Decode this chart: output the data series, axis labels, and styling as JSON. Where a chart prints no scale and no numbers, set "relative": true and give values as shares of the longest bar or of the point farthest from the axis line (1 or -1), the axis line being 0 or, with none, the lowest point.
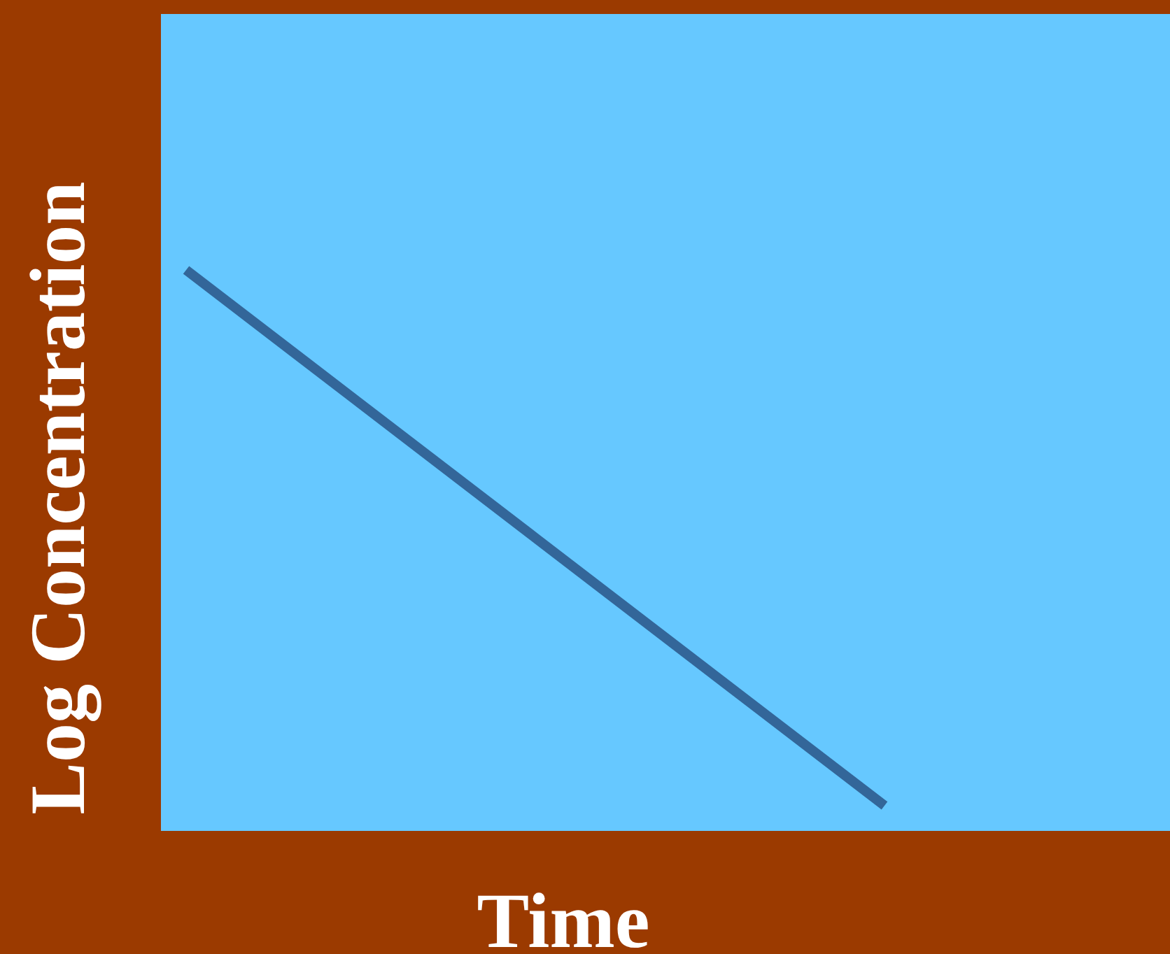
{
  "chart_data": {
    "type": "line",
    "xlabel": "Time",
    "ylabel": "Log Concentration",
    "relative": true,
    "categories": [
      null,
      null
    ],
    "series": [
      {
        "color": "#336699",
        "values": [
          1,
          0.045
        ]
      }
    ],
    "marker": "none",
    "line_style": "solid"
  }
}
